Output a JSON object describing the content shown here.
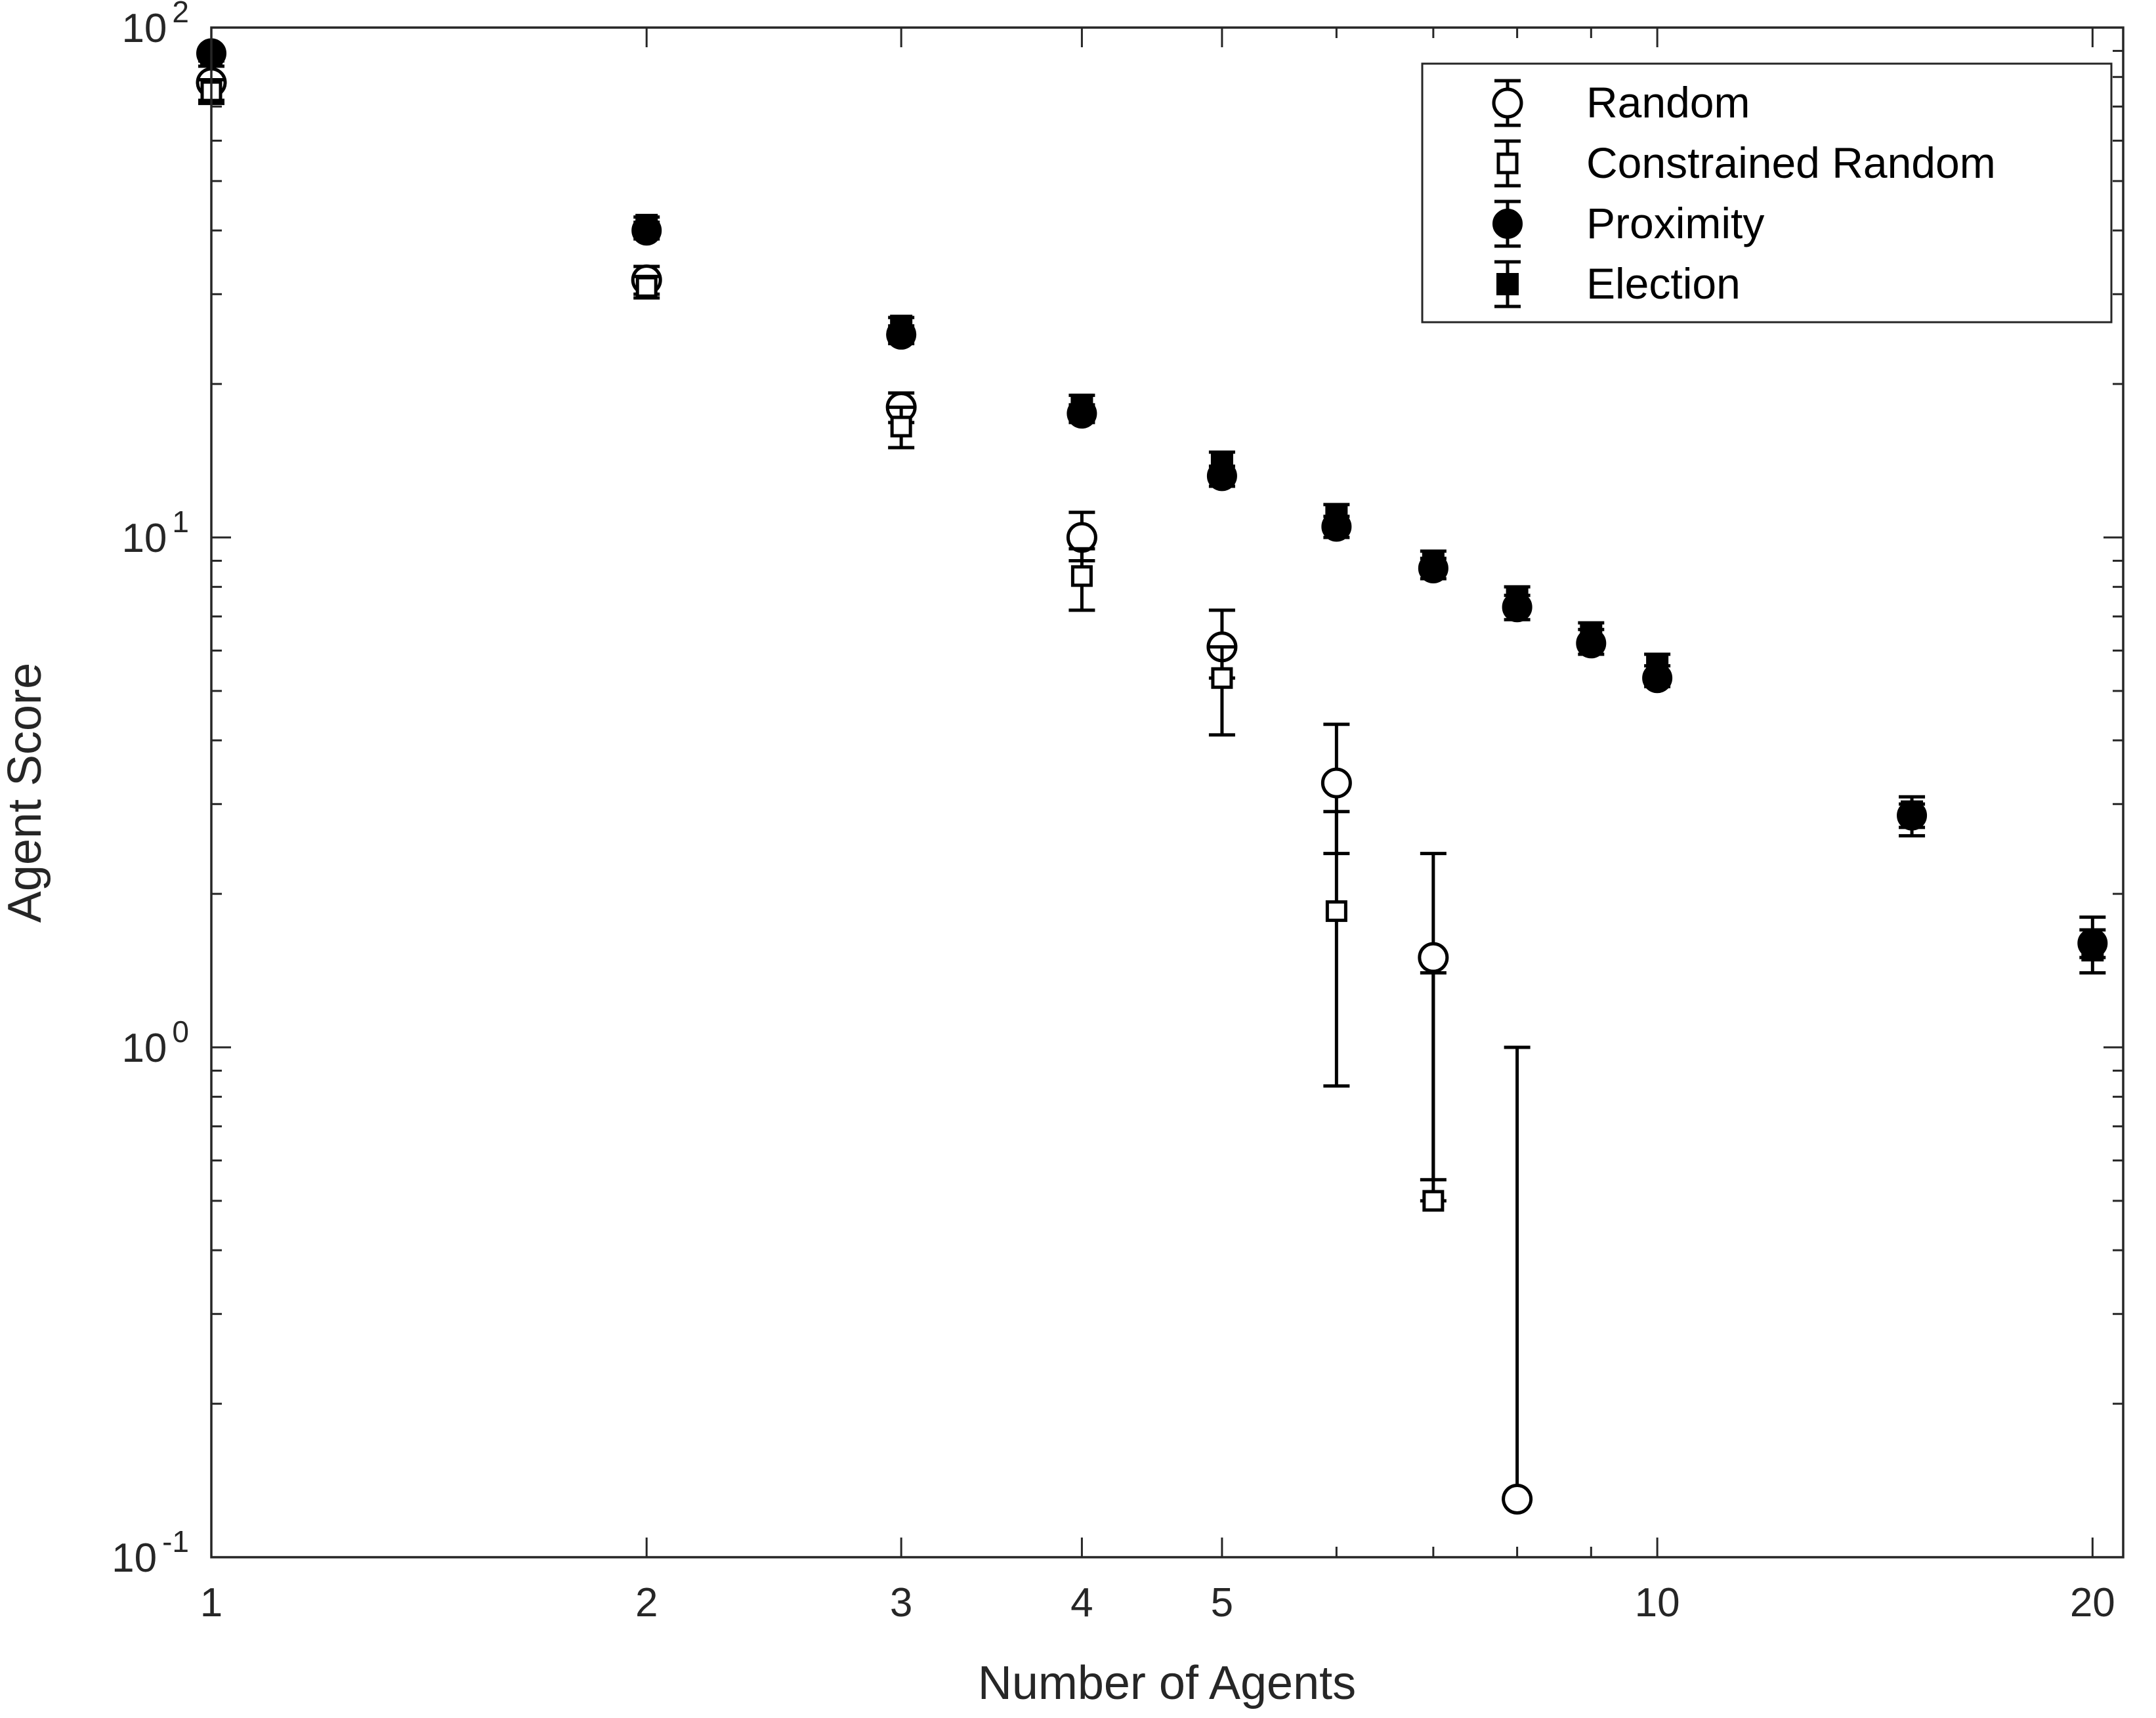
{
  "chart_data": {
    "type": "scatter",
    "title": "",
    "xlabel": "Number of Agents",
    "ylabel": "Agent Score",
    "xscale": "log",
    "yscale": "log",
    "xlim": [
      1,
      21
    ],
    "ylim": [
      0.1,
      100
    ],
    "x_ticks": [
      1,
      2,
      3,
      4,
      5,
      10,
      20
    ],
    "x_tick_labels": [
      "1",
      "2",
      "3",
      "4",
      "5",
      "10",
      "20"
    ],
    "y_ticks": [
      {
        "value": 0.1,
        "base": "10",
        "exp": "-1"
      },
      {
        "value": 1,
        "base": "10",
        "exp": "0"
      },
      {
        "value": 10,
        "base": "10",
        "exp": "1"
      },
      {
        "value": 100,
        "base": "10",
        "exp": "2"
      }
    ],
    "grid": false,
    "legend_position": "top-right",
    "series": [
      {
        "name": "Random",
        "marker": "circle-open",
        "points": [
          {
            "x": 1,
            "y": 78,
            "lo": 72,
            "hi": 84
          },
          {
            "x": 2,
            "y": 32,
            "lo": 30,
            "hi": 34
          },
          {
            "x": 3,
            "y": 18,
            "lo": 16.8,
            "hi": 19.2
          },
          {
            "x": 4,
            "y": 10,
            "lo": 9,
            "hi": 11.2
          },
          {
            "x": 5,
            "y": 6.1,
            "lo": 5.3,
            "hi": 7.2
          },
          {
            "x": 6,
            "y": 3.3,
            "lo": 2.4,
            "hi": 4.3
          },
          {
            "x": 7,
            "y": 1.5,
            "lo": 0.55,
            "hi": 2.4
          },
          {
            "x": 8,
            "y": 0.13,
            "lo": 0.13,
            "hi": 1.0
          }
        ]
      },
      {
        "name": "Constrained Random",
        "marker": "square-open",
        "points": [
          {
            "x": 1,
            "y": 75,
            "lo": 71,
            "hi": 79
          },
          {
            "x": 2,
            "y": 31,
            "lo": 29.5,
            "hi": 32.5
          },
          {
            "x": 3,
            "y": 16.5,
            "lo": 15,
            "hi": 18
          },
          {
            "x": 4,
            "y": 8.4,
            "lo": 7.2,
            "hi": 9.5
          },
          {
            "x": 5,
            "y": 5.3,
            "lo": 4.1,
            "hi": 6.1
          },
          {
            "x": 6,
            "y": 1.85,
            "lo": 0.84,
            "hi": 2.9
          },
          {
            "x": 7,
            "y": 0.5,
            "lo": 0.5,
            "hi": 1.4
          }
        ]
      },
      {
        "name": "Proximity",
        "marker": "circle-filled",
        "points": [
          {
            "x": 1,
            "y": 89,
            "lo": 87,
            "hi": 91
          },
          {
            "x": 2,
            "y": 40,
            "lo": 38.5,
            "hi": 41.5
          },
          {
            "x": 3,
            "y": 25,
            "lo": 24,
            "hi": 26
          },
          {
            "x": 4,
            "y": 17.5,
            "lo": 16.8,
            "hi": 18.2
          },
          {
            "x": 5,
            "y": 13.2,
            "lo": 12.6,
            "hi": 13.8
          },
          {
            "x": 6,
            "y": 10.5,
            "lo": 10.0,
            "hi": 11.0
          },
          {
            "x": 7,
            "y": 8.7,
            "lo": 8.3,
            "hi": 9.1
          },
          {
            "x": 8,
            "y": 7.3,
            "lo": 6.9,
            "hi": 7.7
          },
          {
            "x": 9,
            "y": 6.2,
            "lo": 5.9,
            "hi": 6.6
          },
          {
            "x": 10,
            "y": 5.3,
            "lo": 5.1,
            "hi": 5.6
          },
          {
            "x": 15,
            "y": 2.85,
            "lo": 2.7,
            "hi": 3.0
          },
          {
            "x": 20,
            "y": 1.6,
            "lo": 1.5,
            "hi": 1.7
          }
        ]
      },
      {
        "name": "Election",
        "marker": "square-filled",
        "points": [
          {
            "x": 1,
            "y": 88,
            "lo": 86,
            "hi": 90
          },
          {
            "x": 2,
            "y": 41,
            "lo": 39.5,
            "hi": 42.5
          },
          {
            "x": 3,
            "y": 26,
            "lo": 24.8,
            "hi": 27
          },
          {
            "x": 4,
            "y": 18.2,
            "lo": 17.4,
            "hi": 19
          },
          {
            "x": 5,
            "y": 14,
            "lo": 13.2,
            "hi": 14.7
          },
          {
            "x": 6,
            "y": 11.0,
            "lo": 10.5,
            "hi": 11.6
          },
          {
            "x": 7,
            "y": 9.0,
            "lo": 8.6,
            "hi": 9.4
          },
          {
            "x": 8,
            "y": 7.6,
            "lo": 7.2,
            "hi": 8.0
          },
          {
            "x": 9,
            "y": 6.5,
            "lo": 6.1,
            "hi": 6.8
          },
          {
            "x": 10,
            "y": 5.6,
            "lo": 5.3,
            "hi": 5.9
          },
          {
            "x": 15,
            "y": 2.9,
            "lo": 2.6,
            "hi": 3.1
          },
          {
            "x": 20,
            "y": 1.55,
            "lo": 1.4,
            "hi": 1.8
          }
        ]
      }
    ]
  }
}
